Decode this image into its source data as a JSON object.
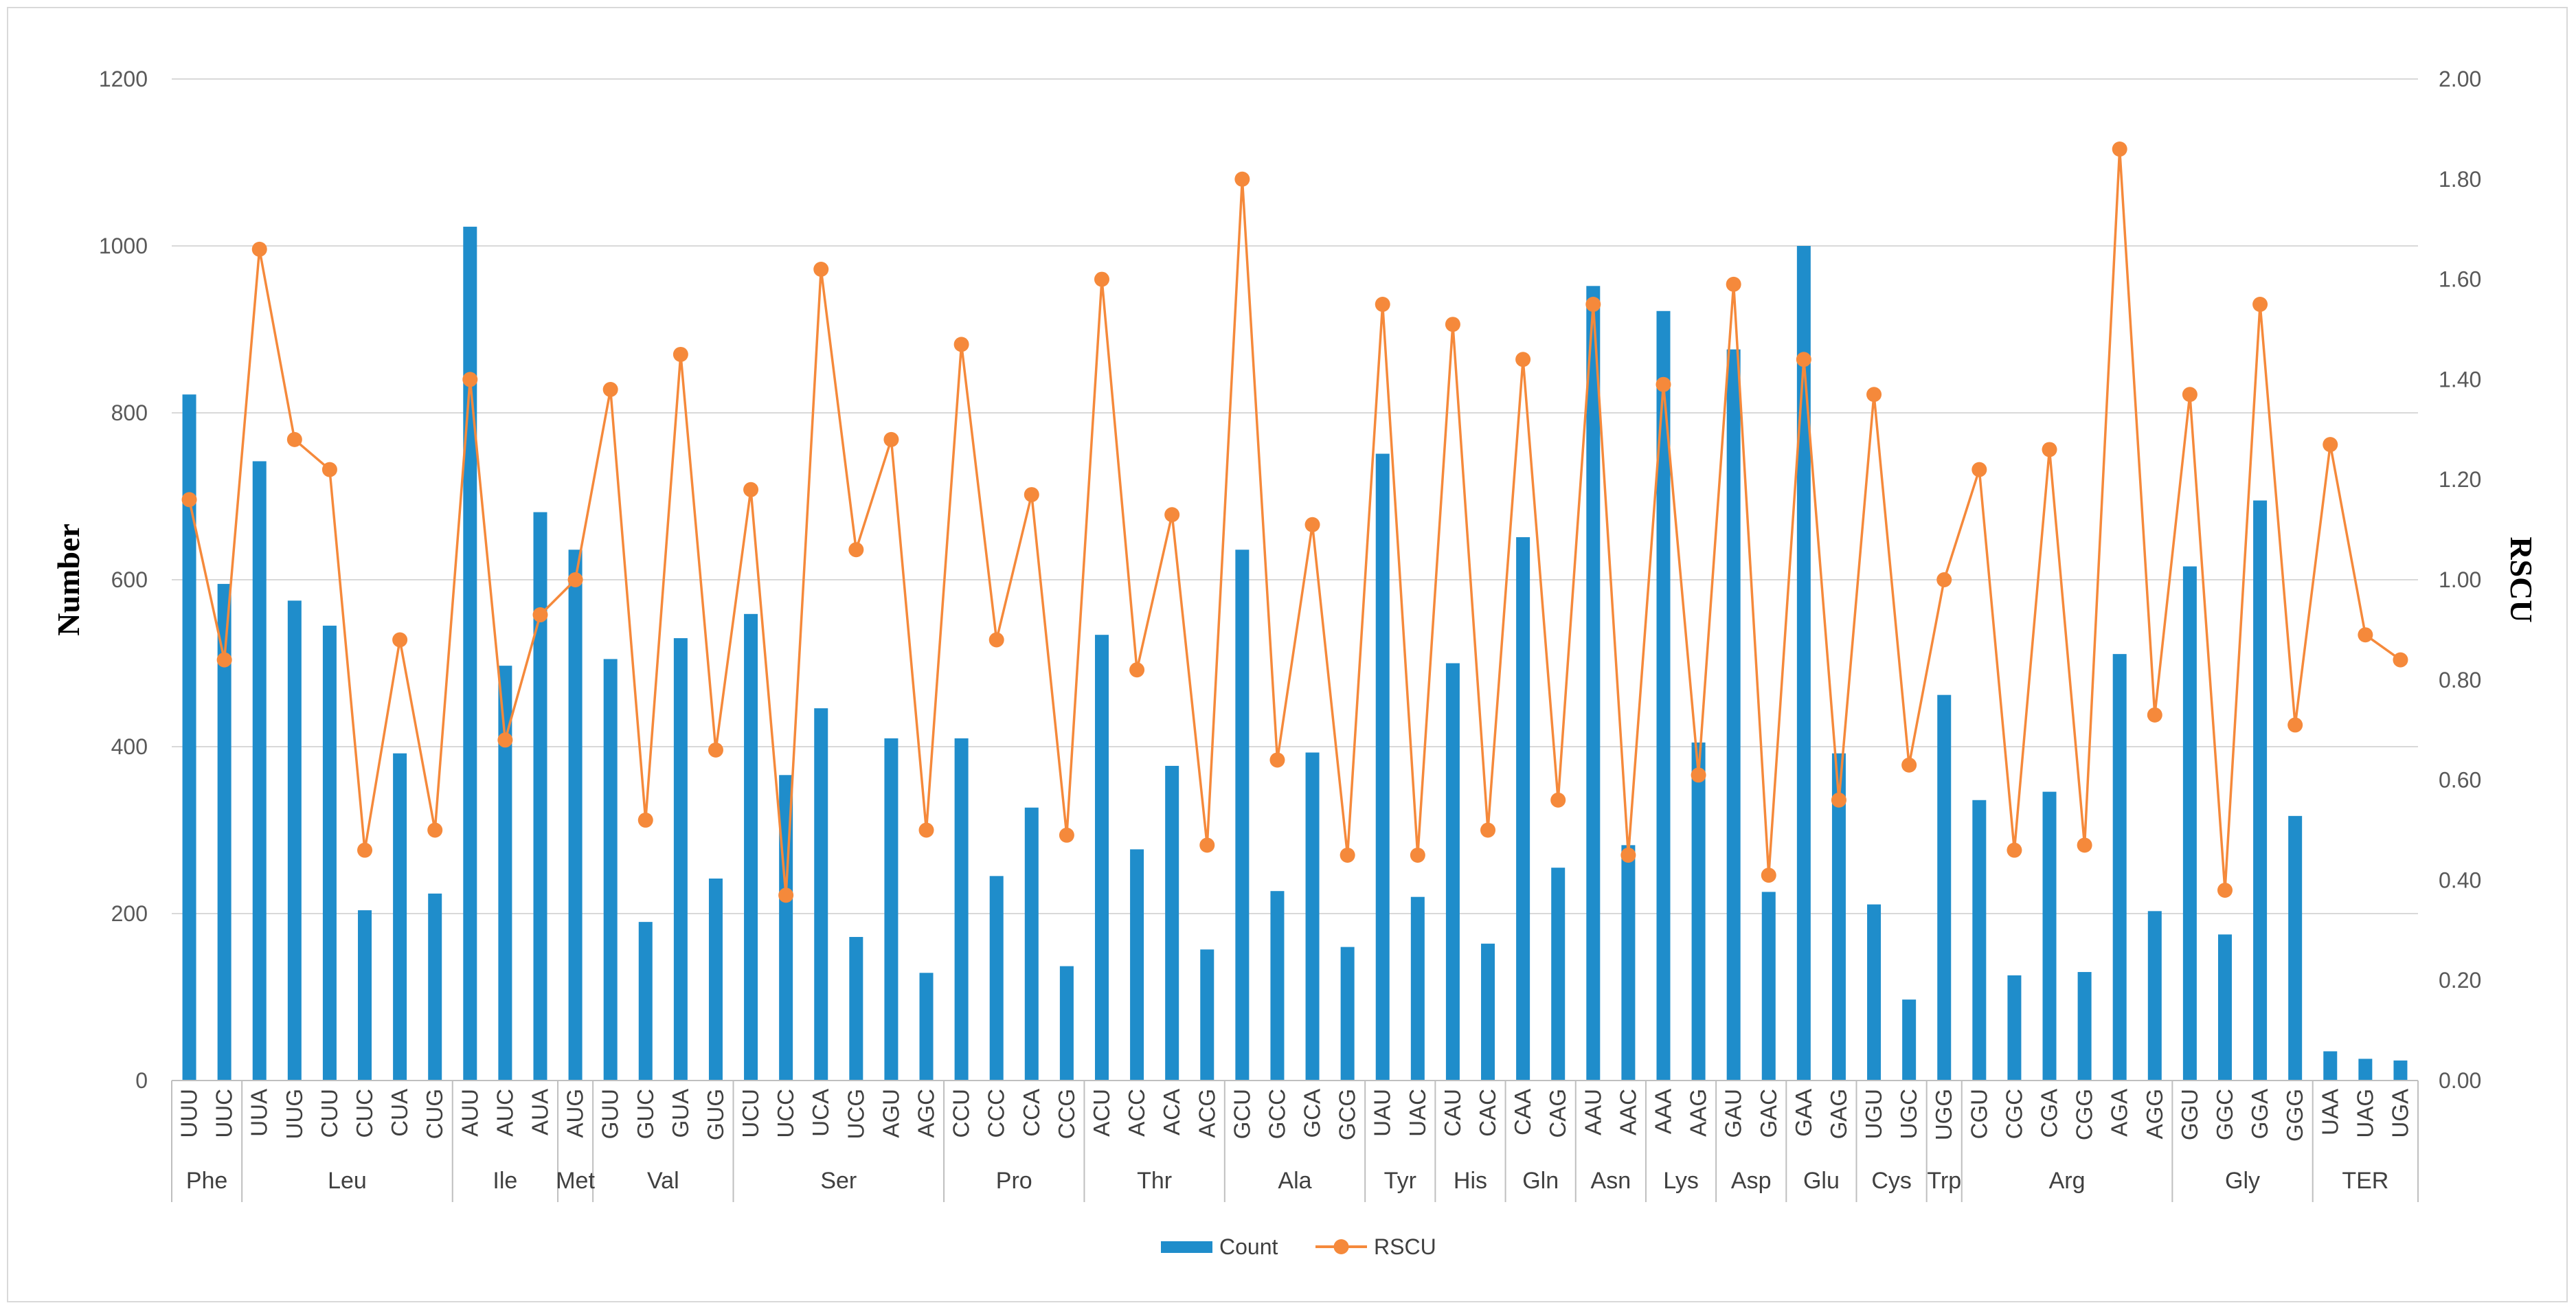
{
  "chart_data": {
    "type": "bar+line",
    "title": "",
    "ylabel": "Number",
    "y2label": "RSCU",
    "ylim": [
      0,
      1200
    ],
    "yticks": [
      "0",
      "200",
      "400",
      "600",
      "800",
      "1000",
      "1200"
    ],
    "y2lim": [
      0,
      2.0
    ],
    "y2ticks": [
      "0.00",
      "0.20",
      "0.40",
      "0.60",
      "0.80",
      "1.00",
      "1.20",
      "1.40",
      "1.60",
      "1.80",
      "2.00"
    ],
    "grid": true,
    "legend_position": "bottom-center",
    "categories": [
      "UUU",
      "UUC",
      "UUA",
      "UUG",
      "CUU",
      "CUC",
      "CUA",
      "CUG",
      "AUU",
      "AUC",
      "AUA",
      "AUG",
      "GUU",
      "GUC",
      "GUA",
      "GUG",
      "UCU",
      "UCC",
      "UCA",
      "UCG",
      "AGU",
      "AGC",
      "CCU",
      "CCC",
      "CCA",
      "CCG",
      "ACU",
      "ACC",
      "ACA",
      "ACG",
      "GCU",
      "GCC",
      "GCA",
      "GCG",
      "UAU",
      "UAC",
      "CAU",
      "CAC",
      "CAA",
      "CAG",
      "AAU",
      "AAC",
      "AAA",
      "AAG",
      "GAU",
      "GAC",
      "GAA",
      "GAG",
      "UGU",
      "UGC",
      "UGG",
      "CGU",
      "CGC",
      "CGA",
      "CGG",
      "AGA",
      "AGG",
      "GGU",
      "GGC",
      "GGA",
      "GGG",
      "UAA",
      "UAG",
      "UGA"
    ],
    "groups": [
      {
        "label": "Phe",
        "span": 2
      },
      {
        "label": "Leu",
        "span": 6
      },
      {
        "label": "Ile",
        "span": 3
      },
      {
        "label": "Met",
        "span": 1
      },
      {
        "label": "Val",
        "span": 4
      },
      {
        "label": "Ser",
        "span": 6
      },
      {
        "label": "Pro",
        "span": 4
      },
      {
        "label": "Thr",
        "span": 4
      },
      {
        "label": "Ala",
        "span": 4
      },
      {
        "label": "Tyr",
        "span": 2
      },
      {
        "label": "His",
        "span": 2
      },
      {
        "label": "Gln",
        "span": 2
      },
      {
        "label": "Asn",
        "span": 2
      },
      {
        "label": "Lys",
        "span": 2
      },
      {
        "label": "Asp",
        "span": 2
      },
      {
        "label": "Glu",
        "span": 2
      },
      {
        "label": "Cys",
        "span": 2
      },
      {
        "label": "Trp",
        "span": 1
      },
      {
        "label": "Arg",
        "span": 6
      },
      {
        "label": "Gly",
        "span": 4
      },
      {
        "label": "TER",
        "span": 3
      }
    ],
    "series": [
      {
        "name": "Count",
        "type": "bar",
        "axis": "left",
        "color": "#1F8DCB",
        "values": [
          822,
          595,
          742,
          575,
          545,
          204,
          392,
          224,
          1023,
          497,
          681,
          636,
          505,
          190,
          530,
          242,
          559,
          366,
          446,
          172,
          410,
          129,
          410,
          245,
          327,
          137,
          534,
          277,
          377,
          157,
          636,
          227,
          393,
          160,
          751,
          220,
          500,
          164,
          651,
          255,
          952,
          282,
          922,
          405,
          876,
          226,
          1000,
          392,
          211,
          97,
          462,
          336,
          126,
          346,
          130,
          511,
          203,
          616,
          175,
          695,
          317,
          35,
          26,
          24
        ]
      },
      {
        "name": "RSCU",
        "type": "line",
        "axis": "right",
        "color": "#F5893B",
        "values": [
          1.16,
          0.84,
          1.66,
          1.28,
          1.22,
          0.46,
          0.88,
          0.5,
          1.4,
          0.68,
          0.93,
          1.0,
          1.38,
          0.52,
          1.45,
          0.66,
          1.18,
          0.37,
          1.62,
          1.06,
          1.28,
          0.5,
          1.47,
          0.88,
          1.17,
          0.49,
          1.6,
          0.82,
          1.13,
          0.47,
          1.8,
          0.64,
          1.11,
          0.45,
          1.55,
          0.45,
          1.51,
          0.5,
          1.44,
          0.56,
          1.55,
          0.45,
          1.39,
          0.61,
          1.59,
          0.41,
          1.44,
          0.56,
          1.37,
          0.63,
          1.0,
          1.22,
          0.46,
          1.26,
          0.47,
          1.86,
          0.73,
          1.37,
          0.38,
          1.55,
          0.71,
          1.27,
          0.89,
          0.84
        ]
      }
    ]
  }
}
